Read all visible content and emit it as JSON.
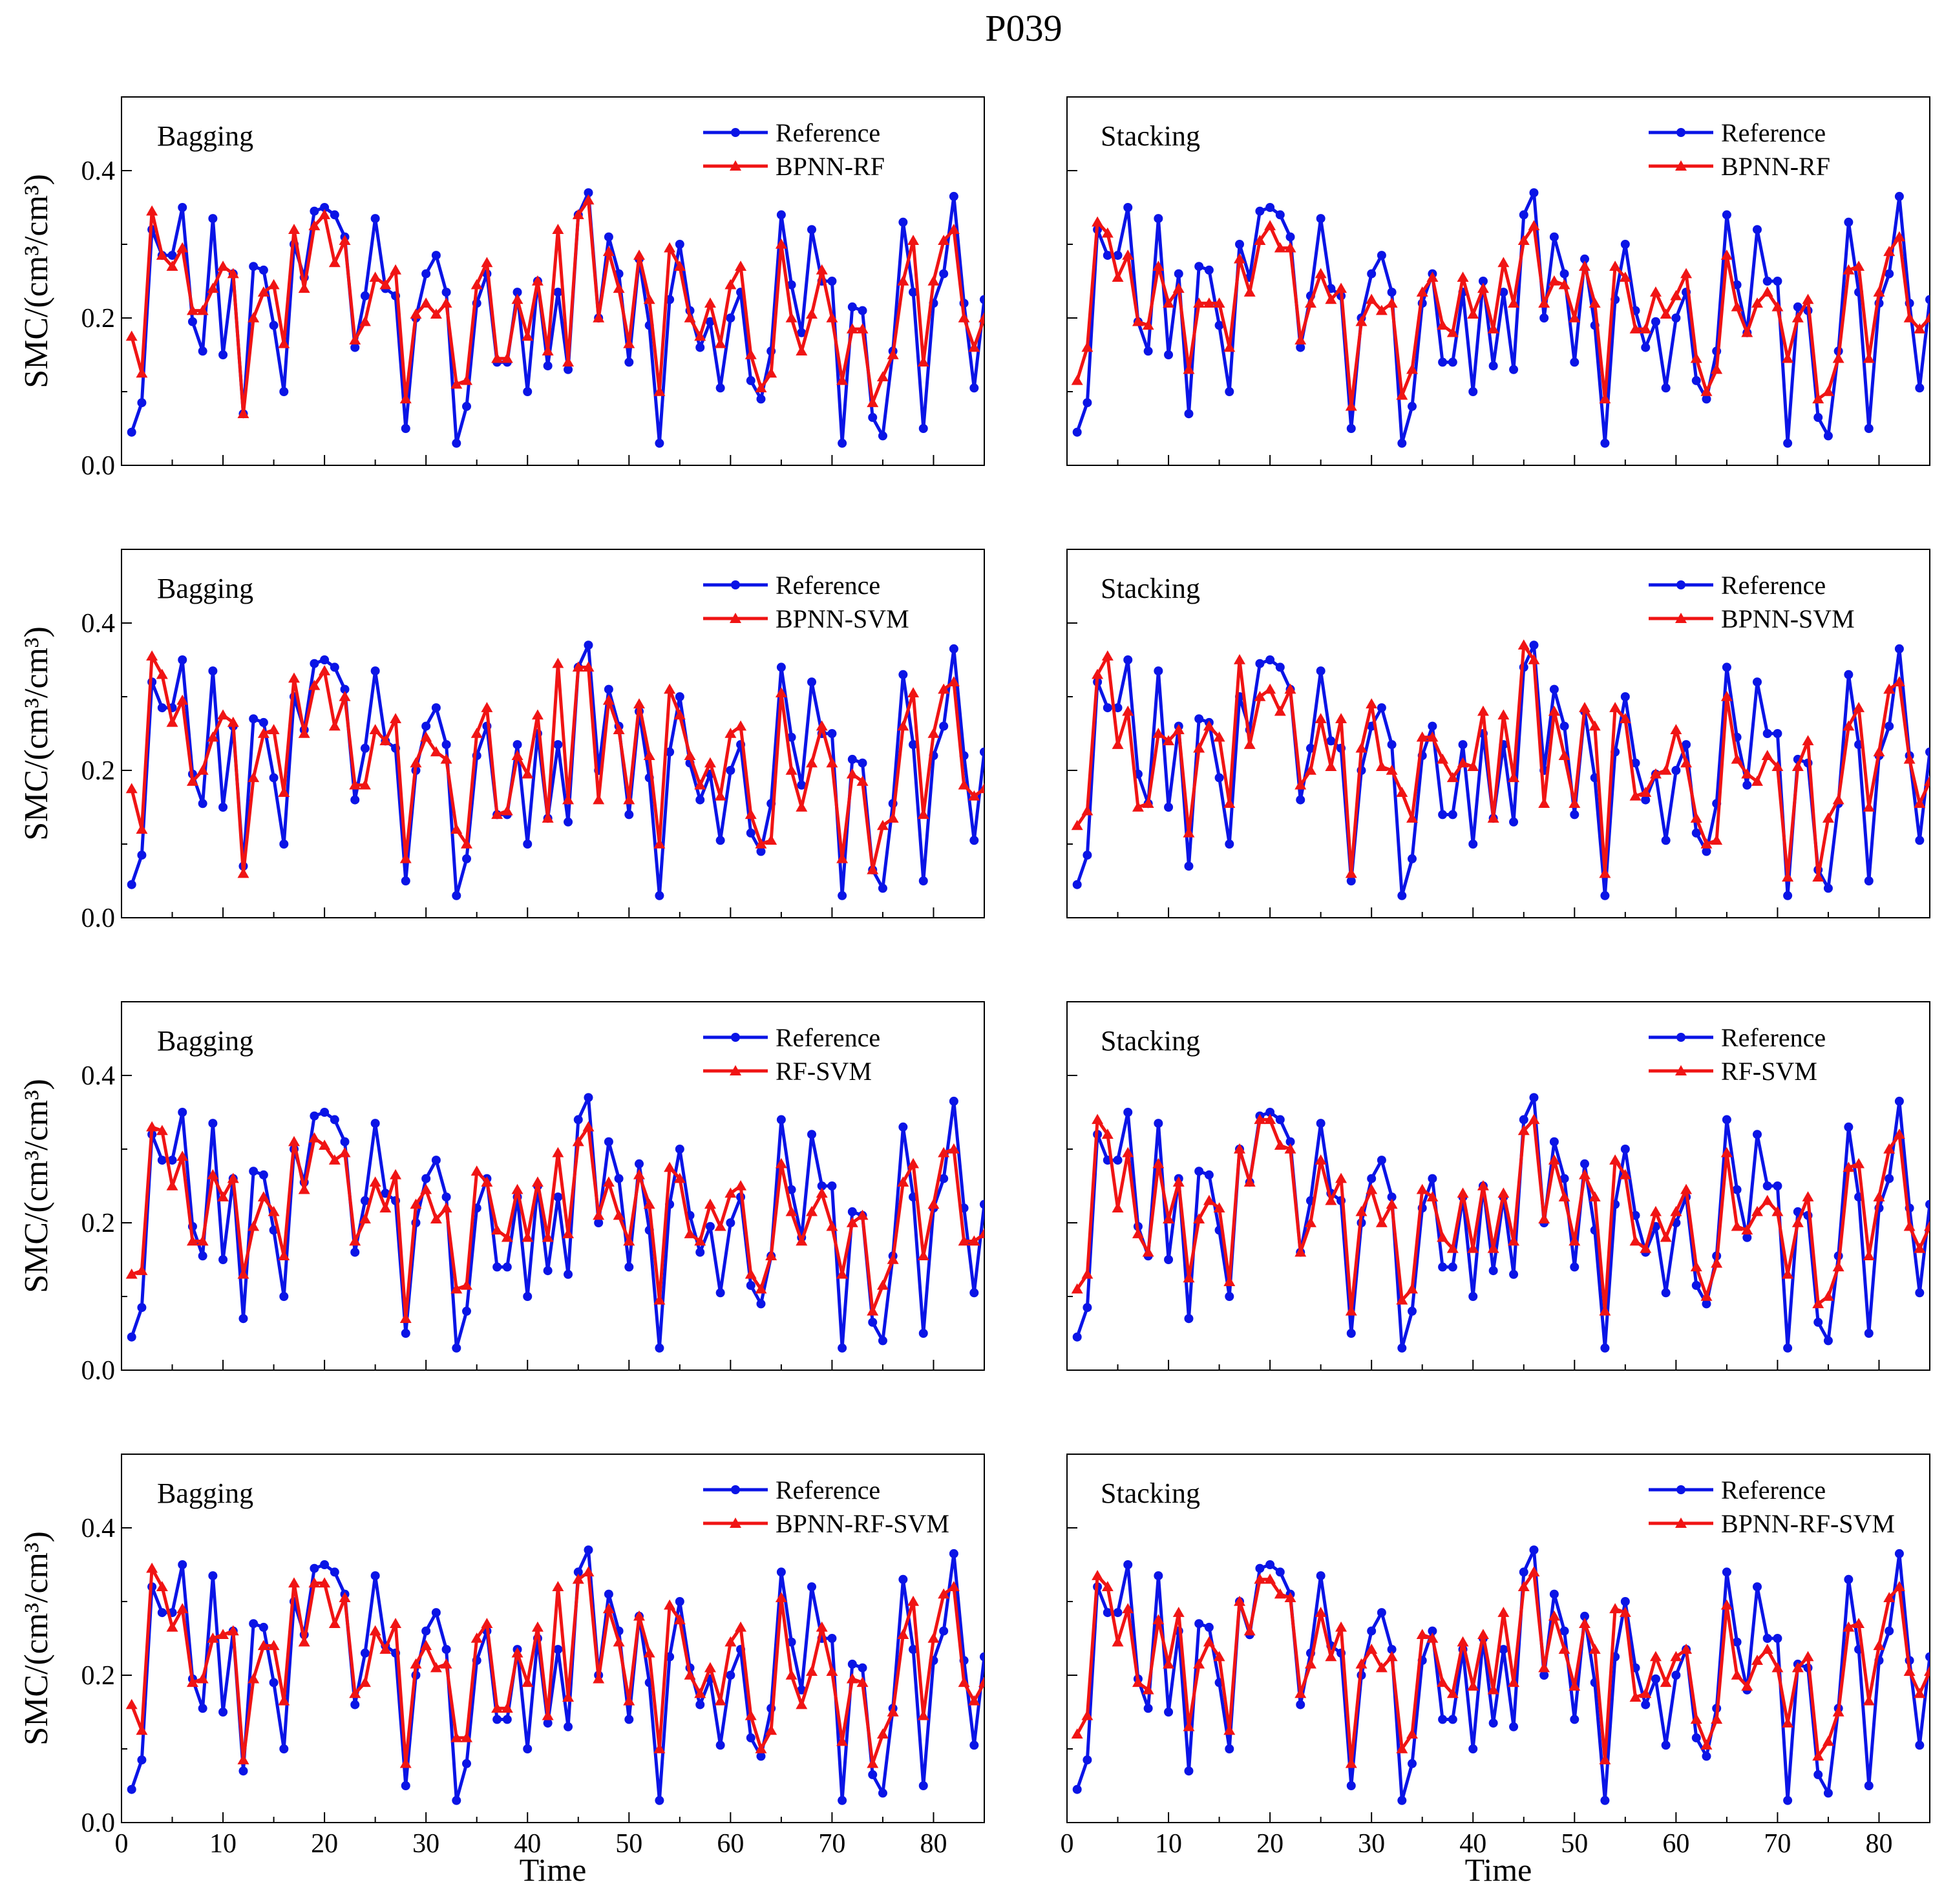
{
  "figure_title": "P039",
  "x_label": "Time",
  "y_label": "SMC/(cm³/cm³)",
  "colors": {
    "reference": "#0a14e6",
    "model": "#f01414",
    "axis": "#000000"
  },
  "chart_data": [
    {
      "type": "line",
      "row": 0,
      "col": 0,
      "method": "Bagging",
      "model": "BPNN-RF"
    },
    {
      "type": "line",
      "row": 0,
      "col": 1,
      "method": "Stacking",
      "model": "BPNN-RF"
    },
    {
      "type": "line",
      "row": 1,
      "col": 0,
      "method": "Bagging",
      "model": "BPNN-SVM"
    },
    {
      "type": "line",
      "row": 1,
      "col": 1,
      "method": "Stacking",
      "model": "BPNN-SVM"
    },
    {
      "type": "line",
      "row": 2,
      "col": 0,
      "method": "Bagging",
      "model": "RF-SVM"
    },
    {
      "type": "line",
      "row": 2,
      "col": 1,
      "method": "Stacking",
      "model": "RF-SVM"
    },
    {
      "type": "line",
      "row": 3,
      "col": 0,
      "method": "Bagging",
      "model": "BPNN-RF-SVM"
    },
    {
      "type": "line",
      "row": 3,
      "col": 1,
      "method": "Stacking",
      "model": "BPNN-RF-SVM"
    }
  ],
  "shared": {
    "x": [
      1,
      2,
      3,
      4,
      5,
      6,
      7,
      8,
      9,
      10,
      11,
      12,
      13,
      14,
      15,
      16,
      17,
      18,
      19,
      20,
      21,
      22,
      23,
      24,
      25,
      26,
      27,
      28,
      29,
      30,
      31,
      32,
      33,
      34,
      35,
      36,
      37,
      38,
      39,
      40,
      41,
      42,
      43,
      44,
      45,
      46,
      47,
      48,
      49,
      50,
      51,
      52,
      53,
      54,
      55,
      56,
      57,
      58,
      59,
      60,
      61,
      62,
      63,
      64,
      65,
      66,
      67,
      68,
      69,
      70,
      71,
      72,
      73,
      74,
      75,
      76,
      77,
      78,
      79,
      80,
      81,
      82,
      83,
      84,
      85
    ],
    "xlim": [
      0,
      85
    ],
    "ylim": [
      0,
      0.5
    ],
    "xticks": [
      0,
      10,
      20,
      30,
      40,
      50,
      60,
      70,
      80
    ],
    "yticks": [
      0.0,
      0.2,
      0.4
    ],
    "ytick_labels": [
      "0.0",
      "0.2",
      "0.4"
    ],
    "legend_reference": "Reference",
    "reference": [
      0.045,
      0.085,
      0.32,
      0.285,
      0.285,
      0.35,
      0.195,
      0.155,
      0.335,
      0.15,
      0.26,
      0.07,
      0.27,
      0.265,
      0.19,
      0.1,
      0.3,
      0.255,
      0.345,
      0.35,
      0.34,
      0.31,
      0.16,
      0.23,
      0.335,
      0.24,
      0.23,
      0.05,
      0.2,
      0.26,
      0.285,
      0.235,
      0.03,
      0.08,
      0.22,
      0.26,
      0.14,
      0.14,
      0.235,
      0.1,
      0.25,
      0.135,
      0.235,
      0.13,
      0.34,
      0.37,
      0.2,
      0.31,
      0.26,
      0.14,
      0.28,
      0.19,
      0.03,
      0.225,
      0.3,
      0.21,
      0.16,
      0.195,
      0.105,
      0.2,
      0.235,
      0.115,
      0.09,
      0.155,
      0.34,
      0.245,
      0.18,
      0.32,
      0.25,
      0.25,
      0.03,
      0.215,
      0.21,
      0.065,
      0.04,
      0.155,
      0.33,
      0.235,
      0.05,
      0.22,
      0.26,
      0.365,
      0.22,
      0.105,
      0.225
    ]
  },
  "panels": [
    {
      "series": [
        0.175,
        0.125,
        0.345,
        0.285,
        0.27,
        0.295,
        0.21,
        0.21,
        0.24,
        0.27,
        0.26,
        0.07,
        0.2,
        0.235,
        0.245,
        0.165,
        0.32,
        0.24,
        0.325,
        0.34,
        0.275,
        0.305,
        0.17,
        0.195,
        0.255,
        0.245,
        0.265,
        0.09,
        0.205,
        0.22,
        0.205,
        0.22,
        0.11,
        0.115,
        0.245,
        0.275,
        0.145,
        0.145,
        0.225,
        0.175,
        0.25,
        0.155,
        0.32,
        0.14,
        0.34,
        0.36,
        0.2,
        0.29,
        0.24,
        0.165,
        0.285,
        0.225,
        0.1,
        0.295,
        0.27,
        0.2,
        0.175,
        0.22,
        0.165,
        0.245,
        0.27,
        0.15,
        0.105,
        0.125,
        0.3,
        0.2,
        0.155,
        0.205,
        0.265,
        0.2,
        0.115,
        0.185,
        0.185,
        0.085,
        0.12,
        0.15,
        0.25,
        0.305,
        0.14,
        0.25,
        0.305,
        0.32,
        0.2,
        0.16,
        0.2
      ]
    },
    {
      "series": [
        0.115,
        0.16,
        0.33,
        0.315,
        0.255,
        0.285,
        0.195,
        0.19,
        0.27,
        0.22,
        0.24,
        0.13,
        0.22,
        0.22,
        0.22,
        0.16,
        0.28,
        0.235,
        0.305,
        0.325,
        0.295,
        0.295,
        0.17,
        0.22,
        0.26,
        0.225,
        0.24,
        0.08,
        0.195,
        0.225,
        0.21,
        0.22,
        0.095,
        0.13,
        0.235,
        0.255,
        0.19,
        0.18,
        0.255,
        0.205,
        0.24,
        0.185,
        0.275,
        0.22,
        0.305,
        0.325,
        0.22,
        0.25,
        0.245,
        0.2,
        0.27,
        0.22,
        0.09,
        0.27,
        0.255,
        0.185,
        0.185,
        0.235,
        0.205,
        0.23,
        0.26,
        0.145,
        0.1,
        0.13,
        0.285,
        0.215,
        0.18,
        0.22,
        0.235,
        0.215,
        0.145,
        0.2,
        0.225,
        0.09,
        0.1,
        0.145,
        0.265,
        0.27,
        0.145,
        0.235,
        0.29,
        0.31,
        0.2,
        0.185,
        0.2
      ]
    },
    {
      "series": [
        0.175,
        0.12,
        0.355,
        0.33,
        0.265,
        0.295,
        0.185,
        0.2,
        0.245,
        0.275,
        0.265,
        0.06,
        0.19,
        0.25,
        0.255,
        0.17,
        0.325,
        0.25,
        0.315,
        0.335,
        0.26,
        0.3,
        0.18,
        0.18,
        0.255,
        0.24,
        0.27,
        0.08,
        0.21,
        0.245,
        0.225,
        0.215,
        0.12,
        0.1,
        0.25,
        0.285,
        0.14,
        0.145,
        0.22,
        0.195,
        0.275,
        0.135,
        0.345,
        0.16,
        0.34,
        0.34,
        0.16,
        0.295,
        0.255,
        0.16,
        0.29,
        0.22,
        0.1,
        0.31,
        0.275,
        0.22,
        0.18,
        0.21,
        0.165,
        0.25,
        0.26,
        0.14,
        0.1,
        0.105,
        0.305,
        0.2,
        0.15,
        0.21,
        0.26,
        0.21,
        0.08,
        0.195,
        0.185,
        0.065,
        0.125,
        0.135,
        0.26,
        0.305,
        0.14,
        0.25,
        0.31,
        0.32,
        0.18,
        0.165,
        0.175
      ]
    },
    {
      "series": [
        0.125,
        0.145,
        0.33,
        0.355,
        0.235,
        0.28,
        0.15,
        0.155,
        0.25,
        0.24,
        0.255,
        0.115,
        0.23,
        0.26,
        0.245,
        0.155,
        0.35,
        0.235,
        0.3,
        0.31,
        0.28,
        0.31,
        0.18,
        0.2,
        0.27,
        0.205,
        0.27,
        0.06,
        0.23,
        0.29,
        0.205,
        0.2,
        0.17,
        0.135,
        0.245,
        0.245,
        0.215,
        0.19,
        0.21,
        0.205,
        0.28,
        0.135,
        0.275,
        0.19,
        0.37,
        0.35,
        0.155,
        0.28,
        0.22,
        0.155,
        0.285,
        0.26,
        0.06,
        0.285,
        0.27,
        0.165,
        0.17,
        0.195,
        0.2,
        0.255,
        0.21,
        0.135,
        0.1,
        0.105,
        0.3,
        0.215,
        0.195,
        0.185,
        0.22,
        0.205,
        0.055,
        0.205,
        0.24,
        0.055,
        0.135,
        0.16,
        0.26,
        0.285,
        0.15,
        0.225,
        0.31,
        0.32,
        0.215,
        0.155,
        0.185
      ]
    },
    {
      "series": [
        0.13,
        0.135,
        0.33,
        0.325,
        0.25,
        0.29,
        0.175,
        0.175,
        0.265,
        0.235,
        0.26,
        0.13,
        0.195,
        0.235,
        0.215,
        0.155,
        0.31,
        0.245,
        0.315,
        0.305,
        0.285,
        0.295,
        0.175,
        0.205,
        0.255,
        0.22,
        0.265,
        0.07,
        0.225,
        0.245,
        0.205,
        0.22,
        0.11,
        0.115,
        0.27,
        0.255,
        0.19,
        0.18,
        0.245,
        0.18,
        0.255,
        0.18,
        0.295,
        0.185,
        0.31,
        0.33,
        0.21,
        0.255,
        0.21,
        0.175,
        0.265,
        0.225,
        0.095,
        0.275,
        0.26,
        0.185,
        0.175,
        0.225,
        0.195,
        0.24,
        0.25,
        0.13,
        0.11,
        0.155,
        0.28,
        0.215,
        0.175,
        0.215,
        0.24,
        0.195,
        0.13,
        0.2,
        0.21,
        0.08,
        0.115,
        0.15,
        0.255,
        0.28,
        0.155,
        0.225,
        0.295,
        0.3,
        0.175,
        0.175,
        0.185
      ]
    },
    {
      "series": [
        0.11,
        0.13,
        0.34,
        0.32,
        0.22,
        0.295,
        0.185,
        0.16,
        0.28,
        0.205,
        0.255,
        0.125,
        0.205,
        0.23,
        0.22,
        0.12,
        0.3,
        0.255,
        0.34,
        0.34,
        0.305,
        0.3,
        0.16,
        0.2,
        0.285,
        0.23,
        0.26,
        0.08,
        0.215,
        0.245,
        0.2,
        0.225,
        0.095,
        0.11,
        0.245,
        0.235,
        0.18,
        0.165,
        0.24,
        0.165,
        0.25,
        0.165,
        0.24,
        0.175,
        0.325,
        0.34,
        0.205,
        0.285,
        0.235,
        0.175,
        0.265,
        0.235,
        0.08,
        0.285,
        0.265,
        0.175,
        0.165,
        0.215,
        0.18,
        0.215,
        0.245,
        0.14,
        0.1,
        0.145,
        0.295,
        0.195,
        0.19,
        0.215,
        0.23,
        0.215,
        0.13,
        0.2,
        0.235,
        0.09,
        0.1,
        0.14,
        0.275,
        0.28,
        0.155,
        0.235,
        0.3,
        0.32,
        0.195,
        0.165,
        0.195
      ]
    },
    {
      "series": [
        0.16,
        0.125,
        0.345,
        0.32,
        0.265,
        0.29,
        0.19,
        0.195,
        0.25,
        0.255,
        0.26,
        0.085,
        0.195,
        0.24,
        0.24,
        0.165,
        0.325,
        0.245,
        0.325,
        0.325,
        0.27,
        0.305,
        0.175,
        0.19,
        0.26,
        0.235,
        0.27,
        0.08,
        0.215,
        0.24,
        0.21,
        0.215,
        0.115,
        0.115,
        0.25,
        0.27,
        0.155,
        0.155,
        0.23,
        0.19,
        0.265,
        0.145,
        0.32,
        0.17,
        0.33,
        0.34,
        0.195,
        0.29,
        0.245,
        0.165,
        0.28,
        0.23,
        0.1,
        0.295,
        0.275,
        0.2,
        0.175,
        0.21,
        0.165,
        0.245,
        0.265,
        0.145,
        0.1,
        0.125,
        0.305,
        0.2,
        0.16,
        0.205,
        0.265,
        0.205,
        0.11,
        0.195,
        0.19,
        0.08,
        0.12,
        0.15,
        0.255,
        0.3,
        0.145,
        0.25,
        0.31,
        0.32,
        0.19,
        0.165,
        0.19
      ]
    },
    {
      "series": [
        0.12,
        0.145,
        0.335,
        0.32,
        0.245,
        0.29,
        0.19,
        0.18,
        0.275,
        0.215,
        0.285,
        0.13,
        0.215,
        0.245,
        0.225,
        0.125,
        0.3,
        0.26,
        0.33,
        0.33,
        0.31,
        0.305,
        0.175,
        0.215,
        0.285,
        0.225,
        0.265,
        0.08,
        0.215,
        0.235,
        0.21,
        0.225,
        0.1,
        0.12,
        0.255,
        0.25,
        0.19,
        0.175,
        0.245,
        0.185,
        0.255,
        0.18,
        0.285,
        0.19,
        0.32,
        0.34,
        0.21,
        0.28,
        0.235,
        0.185,
        0.27,
        0.235,
        0.085,
        0.29,
        0.285,
        0.17,
        0.175,
        0.225,
        0.19,
        0.225,
        0.235,
        0.14,
        0.105,
        0.14,
        0.295,
        0.2,
        0.185,
        0.22,
        0.235,
        0.21,
        0.135,
        0.21,
        0.225,
        0.09,
        0.11,
        0.15,
        0.265,
        0.27,
        0.165,
        0.24,
        0.305,
        0.32,
        0.205,
        0.175,
        0.205
      ]
    }
  ]
}
